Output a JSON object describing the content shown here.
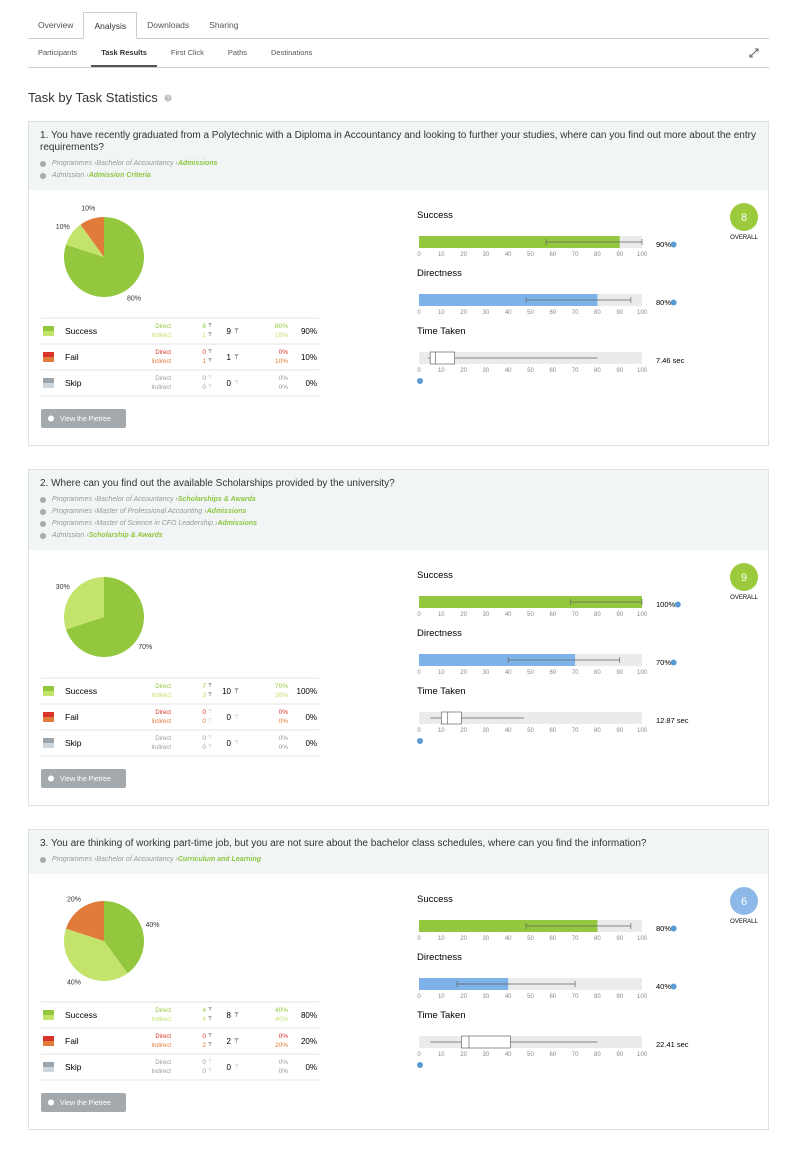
{
  "tabs": [
    {
      "label": "Overview"
    },
    {
      "label": "Analysis",
      "active": true
    },
    {
      "label": "Downloads"
    },
    {
      "label": "Sharing"
    }
  ],
  "subtabs": [
    {
      "label": "Participants"
    },
    {
      "label": "Task Results",
      "active": true
    },
    {
      "label": "First Click"
    },
    {
      "label": "Paths"
    },
    {
      "label": "Destinations"
    }
  ],
  "title": "Task by Task Statistics",
  "axis": {
    "xlim": [
      0,
      100
    ],
    "ticks": [
      0,
      10,
      20,
      30,
      40,
      50,
      60,
      70,
      80,
      90,
      100
    ]
  },
  "labels": {
    "direct": "Direct",
    "indirect": "Indirect",
    "button": "View the Pietree",
    "overall": "OVERALL"
  },
  "tasks": [
    {
      "question": "1. You have recently graduated from a Polytechnic with a Diploma in Accountancy and looking to further your studies, where can you find out more about the entry requirements?",
      "paths": [
        [
          "Programmes",
          "Bachelor of Accountancy",
          "Admissions"
        ],
        [
          "Admission",
          "Admission Criteria"
        ]
      ],
      "pie": [
        {
          "value": 80,
          "label": "80%",
          "color": "#93c83e"
        },
        {
          "value": 10,
          "label": "10%",
          "color": "#c3e36c"
        },
        {
          "value": 10,
          "label": "10%",
          "color": "#e07b39"
        }
      ],
      "rows": [
        {
          "name": "Success",
          "direct": 8,
          "indirect": 1,
          "total": 9,
          "direct_pct": "80%",
          "indirect_pct": "10%",
          "total_pct": "90%",
          "colors": [
            "#93c83e",
            "#c3e36c"
          ]
        },
        {
          "name": "Fail",
          "direct": 0,
          "indirect": 1,
          "total": 1,
          "direct_pct": "0%",
          "indirect_pct": "10%",
          "total_pct": "10%",
          "colors": [
            "#d9342b",
            "#e07b39"
          ]
        },
        {
          "name": "Skip",
          "direct": 0,
          "indirect": 0,
          "total": 0,
          "direct_pct": "0%",
          "indirect_pct": "0%",
          "total_pct": "0%",
          "colors": [
            "#9aa5ad",
            "#cfd6db"
          ]
        }
      ],
      "metrics": {
        "success": {
          "label": "Success",
          "value": 90,
          "value_label": "90%",
          "whisker": [
            57,
            100
          ],
          "color": "#93c83e"
        },
        "directness": {
          "label": "Directness",
          "value": 80,
          "value_label": "80%",
          "whisker": [
            48,
            95
          ],
          "color": "#7db3e8"
        },
        "time": {
          "label": "Time Taken",
          "value": 7.46,
          "value_label": "7.46 sec",
          "box": [
            5,
            16
          ],
          "whisker": [
            4,
            80
          ]
        }
      },
      "score": 8,
      "score_color": "#9bcb3c"
    },
    {
      "question": "2. Where can you find out the available Scholarships provided by the university?",
      "paths": [
        [
          "Programmes",
          "Bachelor of Accountancy",
          "Scholarships & Awards"
        ],
        [
          "Programmes",
          "Master of Professional Accounting",
          "Admissions"
        ],
        [
          "Programmes",
          "Master of Science in CFO Leadership",
          "Admissions"
        ],
        [
          "Admission",
          "Scholarship & Awards"
        ]
      ],
      "pie": [
        {
          "value": 70,
          "label": "70%",
          "color": "#93c83e"
        },
        {
          "value": 30,
          "label": "30%",
          "color": "#c3e36c"
        }
      ],
      "rows": [
        {
          "name": "Success",
          "direct": 7,
          "indirect": 3,
          "total": 10,
          "direct_pct": "70%",
          "indirect_pct": "30%",
          "total_pct": "100%",
          "colors": [
            "#93c83e",
            "#c3e36c"
          ]
        },
        {
          "name": "Fail",
          "direct": 0,
          "indirect": 0,
          "total": 0,
          "direct_pct": "0%",
          "indirect_pct": "0%",
          "total_pct": "0%",
          "colors": [
            "#d9342b",
            "#e07b39"
          ]
        },
        {
          "name": "Skip",
          "direct": 0,
          "indirect": 0,
          "total": 0,
          "direct_pct": "0%",
          "indirect_pct": "0%",
          "total_pct": "0%",
          "colors": [
            "#9aa5ad",
            "#cfd6db"
          ]
        }
      ],
      "metrics": {
        "success": {
          "label": "Success",
          "value": 100,
          "value_label": "100%",
          "whisker": [
            68,
            100
          ],
          "color": "#93c83e"
        },
        "directness": {
          "label": "Directness",
          "value": 70,
          "value_label": "70%",
          "whisker": [
            40,
            90
          ],
          "color": "#7db3e8"
        },
        "time": {
          "label": "Time Taken",
          "value": 12.87,
          "value_label": "12.87 sec",
          "box": [
            10,
            19
          ],
          "whisker": [
            5,
            47
          ]
        }
      },
      "score": 9,
      "score_color": "#9bcb3c"
    },
    {
      "question": "3. You are thinking of working part-time job, but you are not sure about the bachelor class schedules, where can you find the information?",
      "paths": [
        [
          "Programmes",
          "Bachelor of Accountancy",
          "Curriculum and Learning"
        ]
      ],
      "pie": [
        {
          "value": 40,
          "label": "40%",
          "color": "#93c83e"
        },
        {
          "value": 40,
          "label": "40%",
          "color": "#c3e36c"
        },
        {
          "value": 20,
          "label": "20%",
          "color": "#e07b39"
        }
      ],
      "rows": [
        {
          "name": "Success",
          "direct": 4,
          "indirect": 4,
          "total": 8,
          "direct_pct": "40%",
          "indirect_pct": "40%",
          "total_pct": "80%",
          "colors": [
            "#93c83e",
            "#c3e36c"
          ]
        },
        {
          "name": "Fail",
          "direct": 0,
          "indirect": 2,
          "total": 2,
          "direct_pct": "0%",
          "indirect_pct": "20%",
          "total_pct": "20%",
          "colors": [
            "#d9342b",
            "#e07b39"
          ]
        },
        {
          "name": "Skip",
          "direct": 0,
          "indirect": 0,
          "total": 0,
          "direct_pct": "0%",
          "indirect_pct": "0%",
          "total_pct": "0%",
          "colors": [
            "#9aa5ad",
            "#cfd6db"
          ]
        }
      ],
      "metrics": {
        "success": {
          "label": "Success",
          "value": 80,
          "value_label": "80%",
          "whisker": [
            48,
            95
          ],
          "color": "#93c83e"
        },
        "directness": {
          "label": "Directness",
          "value": 40,
          "value_label": "40%",
          "whisker": [
            17,
            70
          ],
          "color": "#7db3e8"
        },
        "time": {
          "label": "Time Taken",
          "value": 22.41,
          "value_label": "22.41 sec",
          "box": [
            19,
            41
          ],
          "whisker": [
            5,
            80
          ]
        }
      },
      "score": 6,
      "score_color": "#8db9e8"
    }
  ]
}
